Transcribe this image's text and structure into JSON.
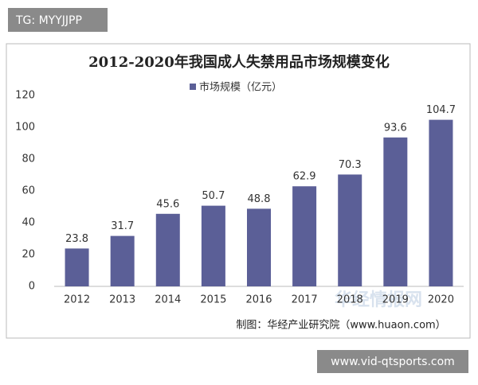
{
  "chart_data": {
    "type": "bar",
    "title": "2012-2020年我国成人失禁用品市场规模变化",
    "categories": [
      "2012",
      "2013",
      "2014",
      "2015",
      "2016",
      "2017",
      "2018",
      "2019",
      "2020"
    ],
    "series": [
      {
        "name": "市场规模（亿元）",
        "color": "#5b5f97",
        "values": [
          23.8,
          31.7,
          45.6,
          50.7,
          48.8,
          62.9,
          70.3,
          93.6,
          104.7
        ]
      }
    ],
    "ylim": [
      0,
      120
    ],
    "yticks": [
      0,
      20,
      40,
      60,
      80,
      100,
      120
    ],
    "grid": false,
    "source": "制图：华经产业研究院（www.huaon.com）"
  },
  "overlays": {
    "top_label": "TG: MYYJJPP",
    "watermark": "华经情报网",
    "bottom_label": "www.vid-qtsports.com"
  }
}
